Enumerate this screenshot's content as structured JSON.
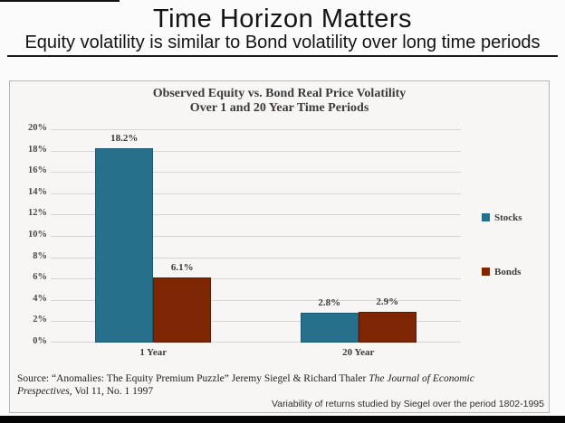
{
  "slide": {
    "title": "Time Horizon Matters",
    "subtitle": "Equity volatility is similar to Bond volatility over long time periods"
  },
  "chart": {
    "title_line1": "Observed Equity vs. Bond Real Price Volatility",
    "title_line2": "Over 1 and 20 Year Time Periods",
    "source": {
      "line1_regular": "Source: “Anomalies: The Equity Premium Puzzle” Jeremy Siegel & Richard Thaler ",
      "line1_italic": "The Journal of Economic",
      "line2_italic": "Prespectives,",
      "line2_regular": " Vol 11, No. 1 1997"
    },
    "caption": "Variability of returns studied by Siegel over the period 1802-1995"
  },
  "chart_data": {
    "type": "bar",
    "title": "Observed Equity vs. Bond Real Price Volatility Over 1 and 20 Year Time Periods",
    "categories": [
      "1 Year",
      "20 Year"
    ],
    "series": [
      {
        "name": "Stocks",
        "values": [
          18.2,
          2.8
        ],
        "labels": [
          "18.2%",
          "2.8%"
        ],
        "color": "#26708c",
        "border_color": "#1c5a72"
      },
      {
        "name": "Bonds",
        "values": [
          6.1,
          2.9
        ],
        "labels": [
          "6.1%",
          "2.9%"
        ],
        "color": "#7e2504",
        "border_color": "#5d1a02"
      }
    ],
    "xlabel": "",
    "ylabel": "",
    "ylim": [
      0,
      20
    ],
    "ytick_step": 2,
    "ytick_suffix": "%",
    "grid": true,
    "legend_position": "right"
  }
}
